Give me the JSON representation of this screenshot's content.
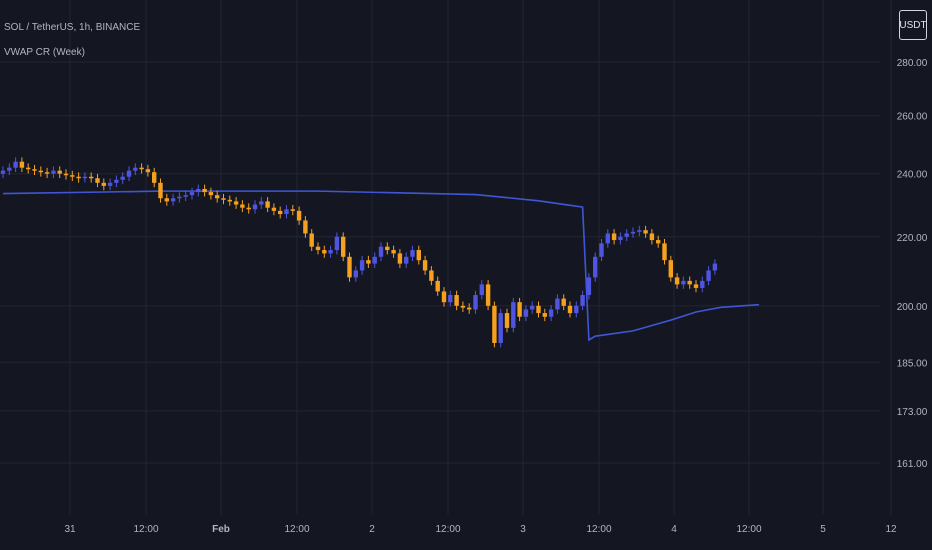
{
  "header": {
    "symbol": "SOL / TetherUS, 1h, BINANCE",
    "indicator": "VWAP CR (Week)",
    "currency_badge": "USDT"
  },
  "colors": {
    "background": "#141722",
    "grid": "#222633",
    "up_candle": "#4f55e0",
    "down_candle": "#f5a11f",
    "vwap_line": "#3f57d6",
    "axis_text": "#b2b5be"
  },
  "chart_data": {
    "type": "candlestick",
    "title": "",
    "xlabel": "",
    "ylabel": "",
    "y_scale": "log",
    "ylim": [
      152,
      290
    ],
    "y_ticks": [
      161,
      173,
      185,
      200,
      220,
      240,
      260,
      280
    ],
    "y_tick_labels": [
      "161.00",
      "173.00",
      "185.00",
      "200.00",
      "220.00",
      "240.00",
      "260.00",
      "280.00"
    ],
    "x_ticks": [
      "31",
      "12:00",
      "Feb",
      "12:00",
      "2",
      "12:00",
      "3",
      "12:00",
      "4",
      "12:00",
      "5",
      "12"
    ],
    "grid": true,
    "series": [
      {
        "kind": "candles",
        "up_color": "#4f55e0",
        "down_color": "#f5a11f",
        "closes": [
          241,
          242,
          244,
          242,
          241.5,
          241,
          240.5,
          240,
          241,
          240,
          239.5,
          239,
          238.5,
          239,
          238.5,
          237,
          236,
          237,
          238,
          239,
          241,
          242,
          241.5,
          240.5,
          237,
          232,
          231,
          232,
          232.5,
          233,
          234,
          235,
          234,
          233,
          232,
          231.5,
          231,
          230,
          229,
          228.5,
          230,
          231,
          229,
          228,
          227,
          228.5,
          228,
          225,
          221,
          217,
          216,
          215,
          216,
          220,
          214,
          208,
          210,
          213,
          212,
          214,
          217,
          216,
          215,
          212,
          214,
          216,
          213,
          210,
          207,
          204,
          201,
          203,
          200,
          199.5,
          199,
          203,
          206,
          200,
          190,
          198,
          194,
          201,
          197,
          199,
          200,
          198,
          197,
          199,
          202,
          200,
          198,
          200,
          203,
          208,
          214,
          218,
          221,
          219,
          220,
          221,
          221.5,
          222,
          221,
          219,
          218,
          213,
          208,
          206,
          207,
          206,
          205,
          207,
          210,
          212
        ],
        "opens": [
          240,
          241,
          242,
          244,
          242,
          241.5,
          241,
          240.5,
          240,
          241,
          240,
          239.5,
          239,
          238.5,
          239,
          238.5,
          237,
          236,
          237,
          238,
          239,
          241,
          242,
          241.5,
          240.5,
          237,
          232,
          231,
          232,
          232.5,
          233,
          234,
          235,
          234,
          233,
          232,
          231.5,
          231,
          230,
          229,
          228.5,
          230,
          231,
          229,
          228,
          227,
          228.5,
          228,
          225,
          221,
          217,
          216,
          215,
          216,
          220,
          214,
          208,
          210,
          213,
          212,
          214,
          217,
          216,
          215,
          212,
          214,
          216,
          213,
          210,
          207,
          204,
          201,
          203,
          200,
          199.5,
          199,
          203,
          206,
          200,
          190,
          198,
          194,
          201,
          197,
          199,
          200,
          198,
          197,
          199,
          202,
          200,
          198,
          200,
          203,
          208,
          214,
          218,
          221,
          219,
          220,
          221,
          221.5,
          222,
          221,
          219,
          218,
          213,
          208,
          206,
          207,
          206,
          205,
          207,
          210
        ]
      },
      {
        "kind": "line",
        "label": "VWAP",
        "color": "#3f57d6",
        "x_slot": [
          0,
          25,
          50,
          75,
          85,
          92,
          93,
          94,
          100,
          106,
          110,
          114,
          120
        ],
        "values": [
          233.5,
          234.3,
          234.3,
          233.2,
          231.2,
          229.2,
          190.8,
          191.8,
          193.2,
          196.1,
          198.3,
          199.6,
          200.3
        ]
      }
    ]
  }
}
